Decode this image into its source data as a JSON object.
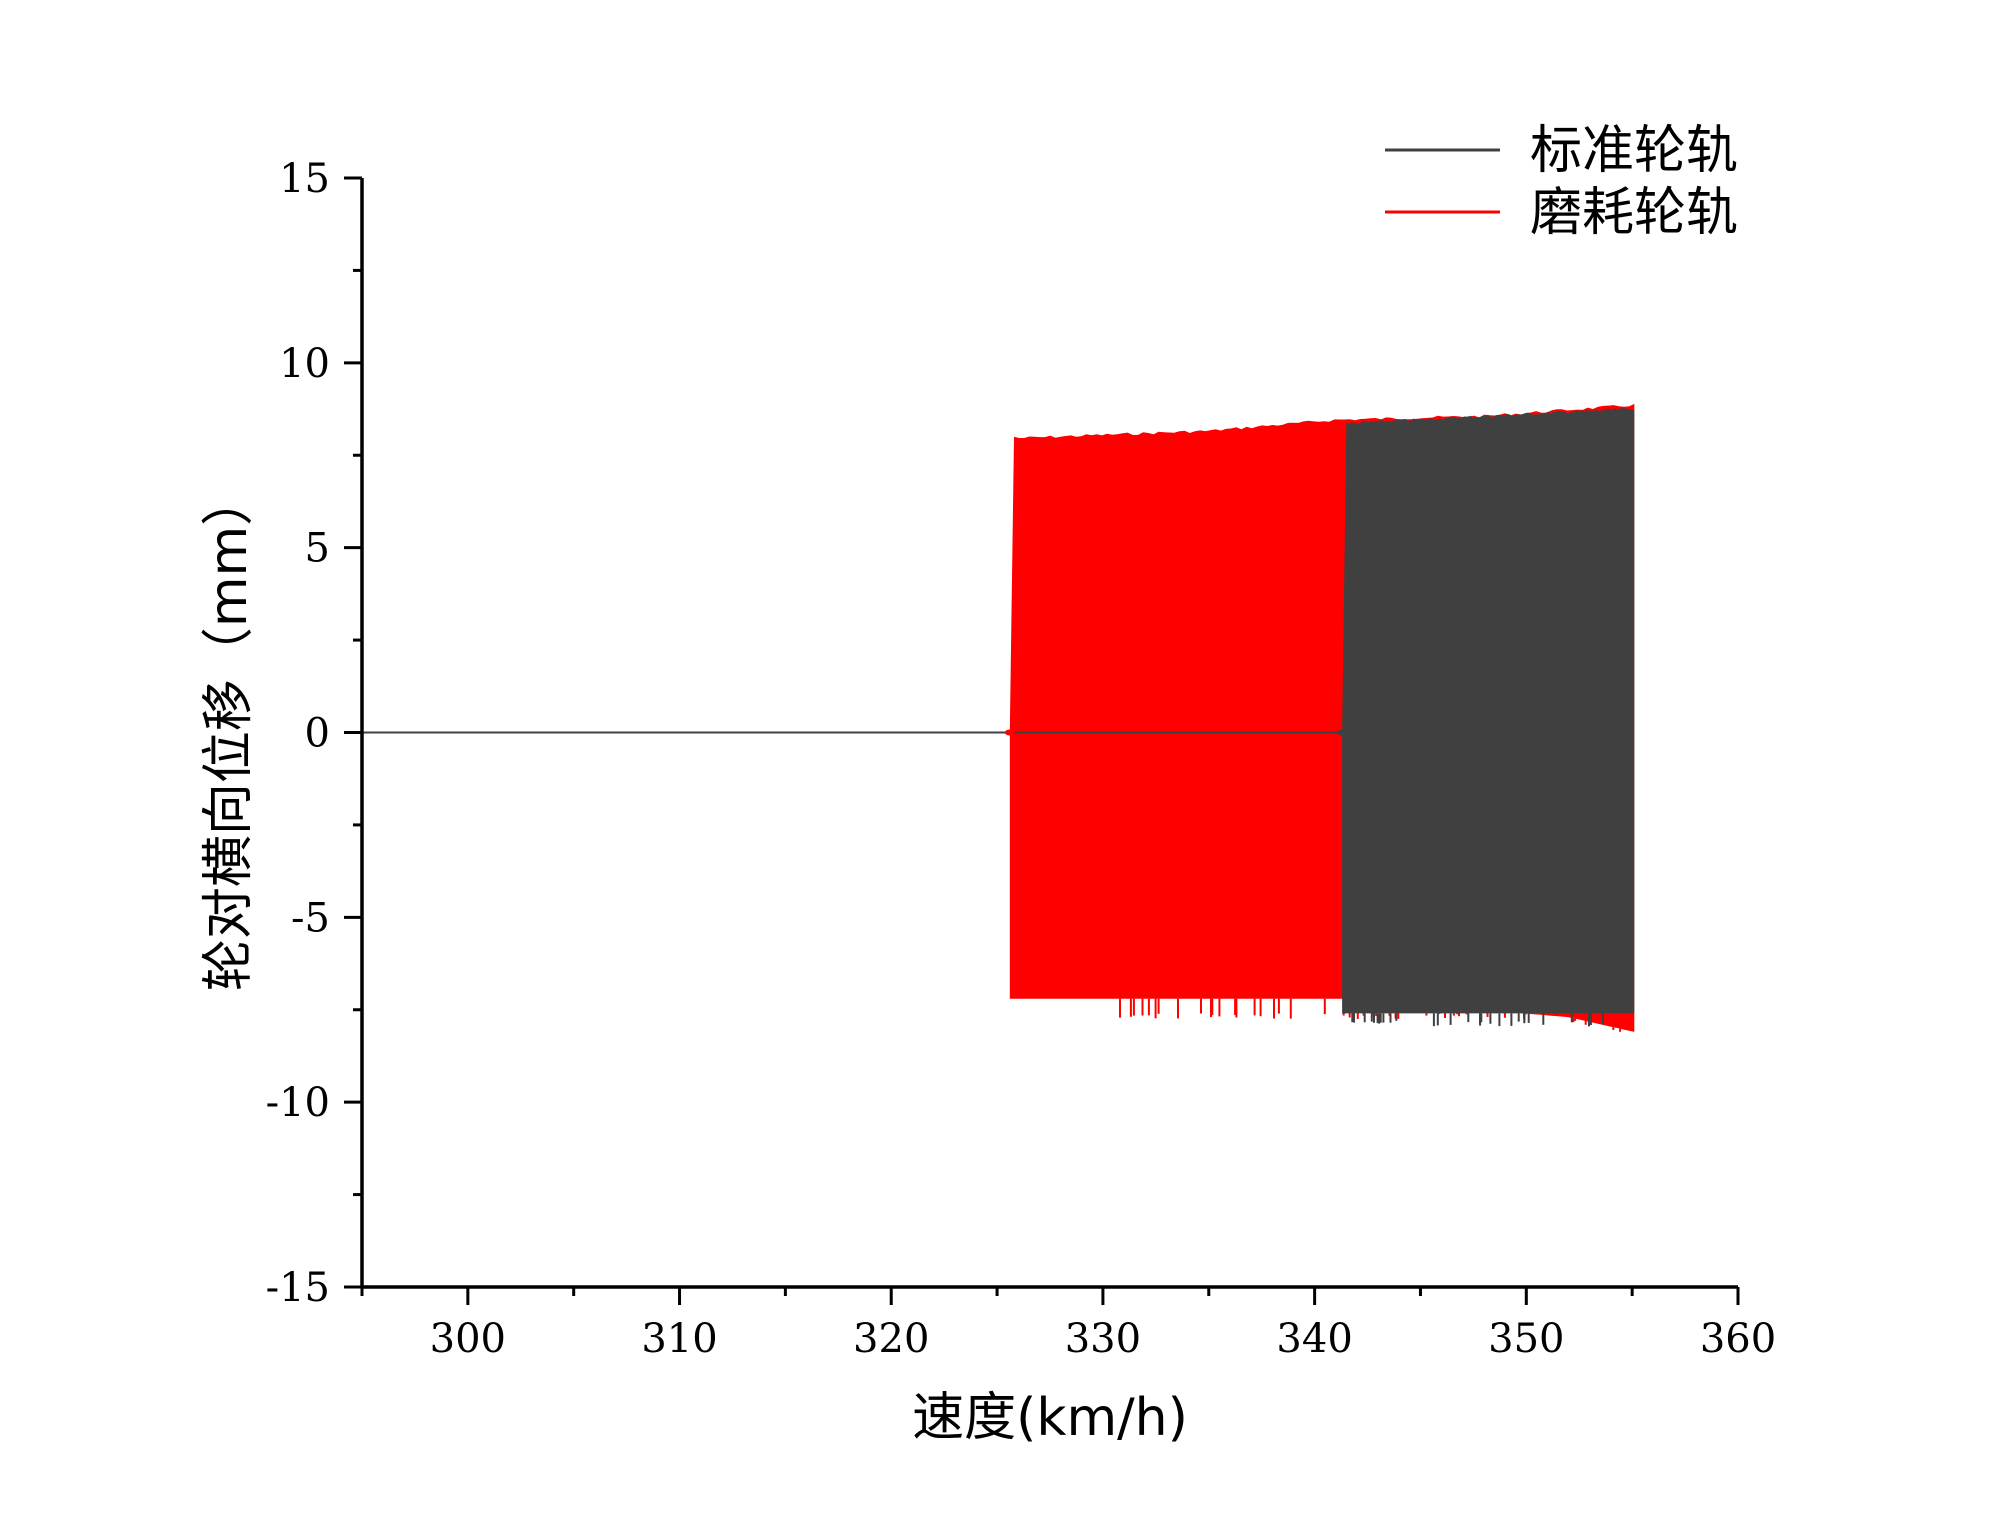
{
  "chart_data": {
    "type": "line",
    "xlabel": "速度(km/h)",
    "ylabel": "轮对横向位移（mm）",
    "xlim": [
      295,
      360
    ],
    "ylim": [
      -15,
      15
    ],
    "x_ticks": [
      300,
      310,
      320,
      330,
      340,
      350,
      360
    ],
    "x_tick_labels": [
      "300",
      "310",
      "320",
      "330",
      "340",
      "350",
      "360"
    ],
    "y_ticks": [
      -15,
      -10,
      -5,
      0,
      5,
      10,
      15
    ],
    "y_tick_labels": [
      "-15",
      "-10",
      "-5",
      "0",
      "5",
      "10",
      "15"
    ],
    "grid": false,
    "legend_position": "top-right",
    "series": [
      {
        "name": "磨耗轮轨",
        "color": "#ff0000",
        "stable_range": [
          295,
          325.6
        ],
        "hunting_onset": 325.6,
        "x_end": 355.1,
        "upper_envelope": [
          [
            325.8,
            8.0
          ],
          [
            335,
            8.2
          ],
          [
            341,
            8.5
          ],
          [
            348,
            8.6
          ],
          [
            355.1,
            8.9
          ]
        ],
        "lower_envelope": [
          [
            325.6,
            -7.2
          ],
          [
            341.4,
            -7.2
          ],
          [
            352,
            -7.7
          ],
          [
            355.1,
            -8.1
          ]
        ],
        "lower_spikes_to": -7.6
      },
      {
        "name": "标准轮轨",
        "color": "#404040",
        "stable_range": [
          295,
          341.3
        ],
        "hunting_onset": 341.3,
        "x_end": 355.1,
        "upper_envelope": [
          [
            341.5,
            8.4
          ],
          [
            348,
            8.6
          ],
          [
            355.1,
            8.8
          ]
        ],
        "lower_envelope": [
          [
            341.3,
            -7.6
          ],
          [
            355.1,
            -7.6
          ]
        ],
        "lower_spikes_to": -7.8
      }
    ]
  }
}
